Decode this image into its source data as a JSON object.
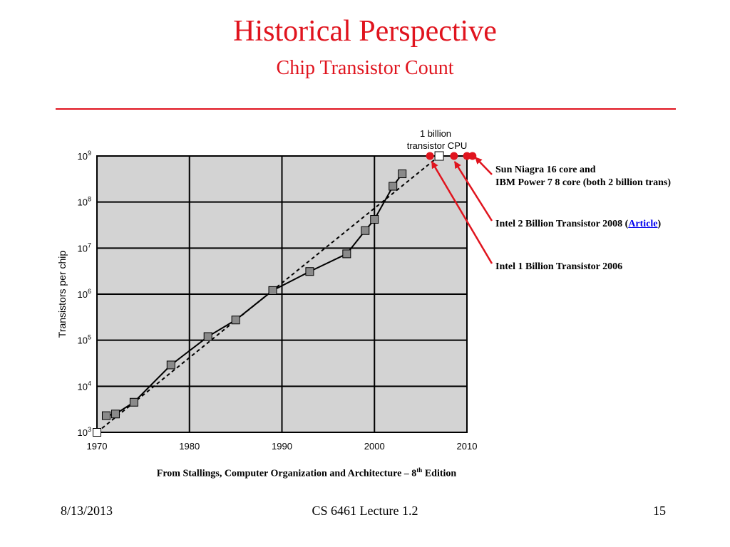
{
  "slide": {
    "title": "Historical Perspective",
    "subtitle": "Chip Transistor Count",
    "source_prefix": "From Stallings, Computer Organization and Architecture – 8",
    "source_sup": "th",
    "source_suffix": " Edition",
    "date": "8/13/2013",
    "course": "CS 6461 Lecture 1.2",
    "page": "15"
  },
  "colors": {
    "accent": "#e0141e",
    "plot_bg": "#d3d3d3",
    "marker": "#8a8a8a",
    "link": "#0000ee"
  },
  "annotations": {
    "chart_callout_line1": "1 billion",
    "chart_callout_line2": "transistor CPU",
    "sun_ibm_line1": "Sun Niagra 16 core and",
    "sun_ibm_line2": "IBM Power 7  8 core (both 2 billion trans)",
    "intel2008_prefix": "Intel 2 Billion Transistor 2008 (",
    "intel2008_link": "Article",
    "intel2008_suffix": ")",
    "intel2006": "Intel 1 Billion Transistor 2006"
  },
  "chart_data": {
    "type": "line",
    "ylabel": "Transistors per chip",
    "xlabel": "",
    "xlim": [
      1970,
      2010
    ],
    "ylim": [
      1000,
      1000000000
    ],
    "yscale": "log",
    "grid": true,
    "x_ticks": [
      "1970",
      "1980",
      "1990",
      "2000",
      "2010"
    ],
    "y_tick_base": "10",
    "y_tick_exponents": [
      "3",
      "4",
      "5",
      "6",
      "7",
      "8",
      "9"
    ],
    "series": [
      {
        "style": "solid-line-square-markers",
        "x": [
          1971,
          1972,
          1974,
          1978,
          1982,
          1985,
          1989,
          1993,
          1997,
          1999,
          2000,
          2002,
          2003
        ],
        "y": [
          2300,
          2500,
          4500,
          29000,
          120000,
          275000,
          1200000,
          3100000,
          7500000,
          24000000,
          42000000,
          220000000,
          410000000
        ]
      },
      {
        "style": "dashed-trend",
        "x": [
          1970,
          2007
        ],
        "y": [
          1000,
          1000000000
        ]
      }
    ],
    "extra_points": [
      {
        "label": "1 billion transistor CPU",
        "x": 2007,
        "y": 1000000000,
        "marker": "open-square"
      },
      {
        "label": "Intel 1 Billion Transistor 2006",
        "x": 2006,
        "y": 1000000000,
        "marker": "red-dot"
      },
      {
        "label": "Intel 2 Billion Transistor 2008",
        "x": 2008.6,
        "y": 1000000000,
        "marker": "red-dot"
      },
      {
        "label": "Sun Niagra 16 core and IBM Power 7 8 core",
        "x": 2010,
        "y": 1000000000,
        "marker": "red-dot"
      },
      {
        "label": "Sun Niagra 16 core and IBM Power 7 8 core",
        "x": 2010.6,
        "y": 1000000000,
        "marker": "red-dot"
      }
    ]
  }
}
